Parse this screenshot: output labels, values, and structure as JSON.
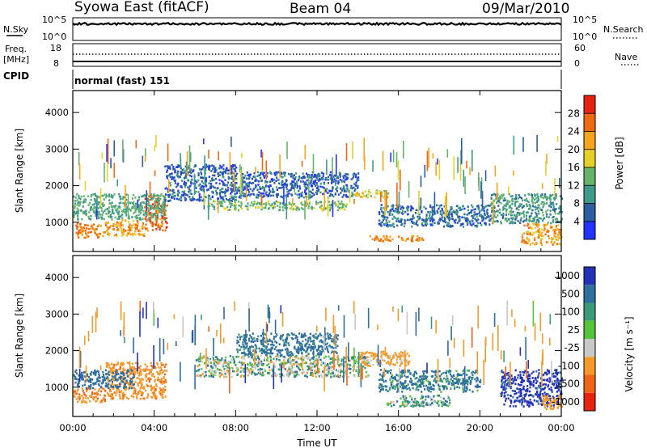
{
  "header": {
    "title": "Syowa East (fitACF)",
    "beam": "Beam 04",
    "date": "09/Mar/2010"
  },
  "top_panels": {
    "nsky_label": "N.Sky",
    "nsky_ticks": [
      "10^5",
      "10^0"
    ],
    "nsearch_label": "N.Search",
    "nsearch_ticks": [
      "10^5",
      "10^0"
    ],
    "freq_label_1": "Freq.",
    "freq_label_2": "[MHz]",
    "freq_ticks": [
      "18",
      "8"
    ],
    "nave_label": "Nave",
    "nave_ticks": [
      "60",
      "0"
    ],
    "cpid_label": "CPID",
    "cpid_value": "normal (fast) 151"
  },
  "chart_data": [
    {
      "type": "heatmap",
      "panel": "power",
      "xlabel": "",
      "ylabel": "Slant Range [km]",
      "x_unit": "hours UT",
      "xlim": [
        0,
        24
      ],
      "ylim": [
        200,
        4600
      ],
      "yticks": [
        "1000",
        "2000",
        "3000",
        "4000"
      ],
      "colorbar": {
        "label": "Power [dB]",
        "range": [
          0,
          32
        ],
        "ticks": [
          "4",
          "8",
          "12",
          "16",
          "20",
          "24",
          "28"
        ],
        "colors": [
          "#2233ff",
          "#2c5fa0",
          "#3f9a8c",
          "#66b36a",
          "#e3d22a",
          "#f6a51f",
          "#f06a14",
          "#e82212"
        ]
      },
      "echo_regions": [
        {
          "t": [
            0.1,
            1.6
          ],
          "range": [
            600,
            1000
          ],
          "value": 24
        },
        {
          "t": [
            1.6,
            3.5
          ],
          "range": [
            650,
            1100
          ],
          "value": 22
        },
        {
          "t": [
            3.5,
            4.6
          ],
          "range": [
            800,
            1800
          ],
          "value": 26
        },
        {
          "t": [
            0.0,
            4.5
          ],
          "range": [
            1100,
            1800
          ],
          "value": 12
        },
        {
          "t": [
            4.5,
            8.0
          ],
          "range": [
            1600,
            2600
          ],
          "value": 6
        },
        {
          "t": [
            6.5,
            13.5
          ],
          "range": [
            1350,
            1600
          ],
          "value": 14
        },
        {
          "t": [
            8.0,
            14.0
          ],
          "range": [
            1700,
            2400
          ],
          "value": 6
        },
        {
          "t": [
            13.5,
            15.5
          ],
          "range": [
            1700,
            1900
          ],
          "value": 18
        },
        {
          "t": [
            14.5,
            17.3
          ],
          "range": [
            500,
            650
          ],
          "value": 24
        },
        {
          "t": [
            15.0,
            20.5
          ],
          "range": [
            900,
            1500
          ],
          "value": 7
        },
        {
          "t": [
            22.0,
            24.0
          ],
          "range": [
            400,
            1000
          ],
          "value": 22
        },
        {
          "t": [
            20.5,
            24.0
          ],
          "range": [
            1000,
            1800
          ],
          "value": 10
        }
      ]
    },
    {
      "type": "heatmap",
      "panel": "velocity",
      "xlabel": "Time UT",
      "ylabel": "Slant Range [km]",
      "x_unit": "hours UT",
      "xlim": [
        0,
        24
      ],
      "ylim": [
        200,
        4600
      ],
      "xticks": [
        "00:00",
        "04:00",
        "08:00",
        "12:00",
        "16:00",
        "20:00",
        "00:00"
      ],
      "yticks": [
        "1000",
        "2000",
        "3000",
        "4000"
      ],
      "colorbar": {
        "label": "Velocity [m s⁻¹]",
        "ticks": [
          "1000",
          "500",
          "100",
          "25",
          "-25",
          "-100",
          "-500",
          "-1000"
        ],
        "colors": [
          "#2432b8",
          "#2f6f9e",
          "#3c9a78",
          "#55c43a",
          "#c8c8c8",
          "#f59a2a",
          "#f0641a",
          "#e82212"
        ]
      },
      "echo_regions": [
        {
          "t": [
            0.0,
            1.6
          ],
          "range": [
            600,
            1000
          ],
          "value": -500
        },
        {
          "t": [
            1.6,
            4.6
          ],
          "range": [
            700,
            1700
          ],
          "value": -400
        },
        {
          "t": [
            0.0,
            3.0
          ],
          "range": [
            1000,
            1500
          ],
          "value": 300
        },
        {
          "t": [
            6.0,
            14.5
          ],
          "range": [
            1300,
            1900
          ],
          "value": 0
        },
        {
          "t": [
            8.0,
            13.0
          ],
          "range": [
            1900,
            2500
          ],
          "value": 200
        },
        {
          "t": [
            14.0,
            16.5
          ],
          "range": [
            1600,
            2000
          ],
          "value": -200
        },
        {
          "t": [
            15.3,
            17.3
          ],
          "range": [
            500,
            650
          ],
          "value": 0
        },
        {
          "t": [
            16.0,
            18.5
          ],
          "range": [
            500,
            800
          ],
          "value": 60
        },
        {
          "t": [
            15.0,
            20.0
          ],
          "range": [
            900,
            1500
          ],
          "value": 150
        },
        {
          "t": [
            21.0,
            24.0
          ],
          "range": [
            500,
            1500
          ],
          "value": 600
        },
        {
          "t": [
            23.0,
            24.0
          ],
          "range": [
            400,
            800
          ],
          "value": -300
        }
      ]
    }
  ]
}
